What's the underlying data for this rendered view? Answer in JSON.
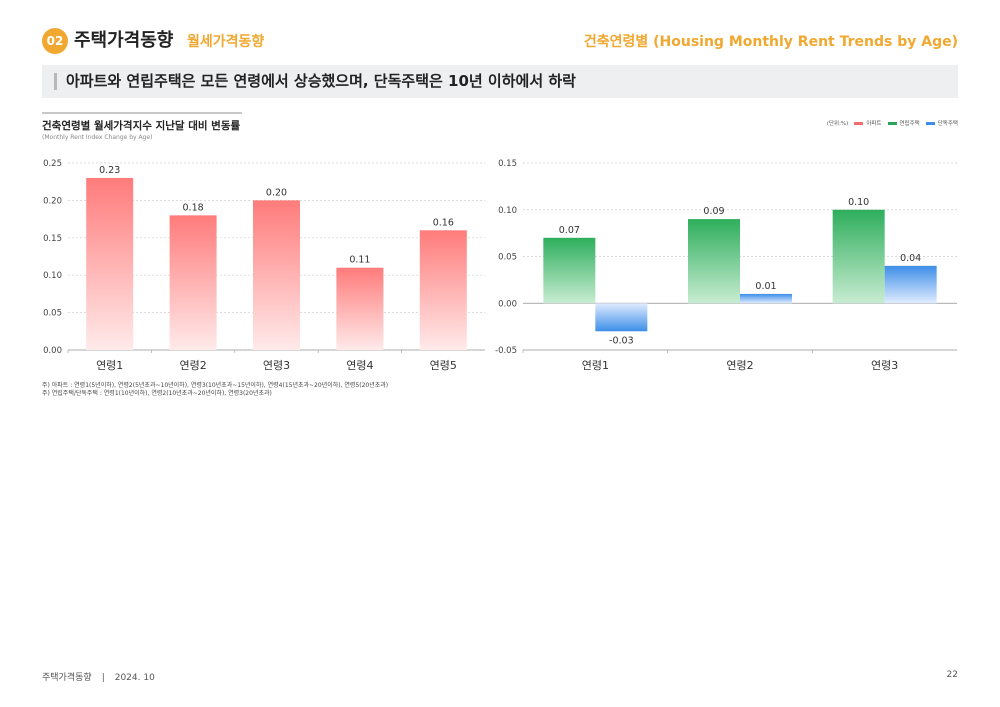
{
  "header": {
    "section_number": "02",
    "section_title": "주택가격동향",
    "section_subtitle": "월세가격동향",
    "right_title": "건축연령별 (Housing Monthly Rent Trends by Age)"
  },
  "banner": {
    "text": "아파트와 연립주택은 모든 연령에서 상승했으며, 단독주택은 10년 이하에서 하락"
  },
  "chart_header": {
    "title": "건축연령별 월세가격지수 지난달 대비 변동률",
    "subtitle": "(Monthly Rent Index Change by Age)"
  },
  "legend": {
    "unit": "(단위:%)",
    "items": [
      {
        "label": "아파트",
        "color": "#f26d6d"
      },
      {
        "label": "연립주택",
        "color": "#27a35a"
      },
      {
        "label": "단독주택",
        "color": "#3d8ee8"
      }
    ]
  },
  "chart_data": [
    {
      "type": "bar",
      "categories": [
        "연령1",
        "연령2",
        "연령3",
        "연령4",
        "연령5"
      ],
      "series": [
        {
          "name": "아파트",
          "values": [
            0.23,
            0.18,
            0.2,
            0.11,
            0.16
          ],
          "labels": [
            "0.23",
            "0.18",
            "0.20",
            "0.11",
            "0.16"
          ],
          "color": "#ff7b7b"
        }
      ],
      "ylim": [
        0,
        0.25
      ],
      "yticks": [
        0.0,
        0.05,
        0.1,
        0.15,
        0.2,
        0.25
      ],
      "ytick_labels": [
        "0.00",
        "0.05",
        "0.10",
        "0.15",
        "0.20",
        "0.25"
      ],
      "grid": true
    },
    {
      "type": "bar",
      "categories": [
        "연령1",
        "연령2",
        "연령3"
      ],
      "series": [
        {
          "name": "연립주택",
          "values": [
            0.07,
            0.09,
            0.1
          ],
          "labels": [
            "0.07",
            "0.09",
            "0.10"
          ],
          "color": "#2eae5c"
        },
        {
          "name": "단독주택",
          "values": [
            -0.03,
            0.01,
            0.04
          ],
          "labels": [
            "-0.03",
            "0.01",
            "0.04"
          ],
          "color": "#3d8ee8"
        }
      ],
      "ylim": [
        -0.05,
        0.15
      ],
      "yticks": [
        -0.05,
        0.0,
        0.05,
        0.1,
        0.15
      ],
      "ytick_labels": [
        "-0.05",
        "0.00",
        "0.05",
        "0.10",
        "0.15"
      ],
      "grid": true
    }
  ],
  "notes": [
    "주) 아파트 : 연령1(5년이하), 연령2(5년초과~10년이하), 연령3(10년초과~15년이하), 연령4(15년초과~20년이하), 연령5(20년초과)",
    "주) 연립주택/단독주택 : 연령1(10년이하), 연령2(10년초과~20년이하), 연령3(20년초과)"
  ],
  "footer": {
    "doc_title": "주택가격동향",
    "separator": "|",
    "date": "2024. 10",
    "page": "22"
  }
}
